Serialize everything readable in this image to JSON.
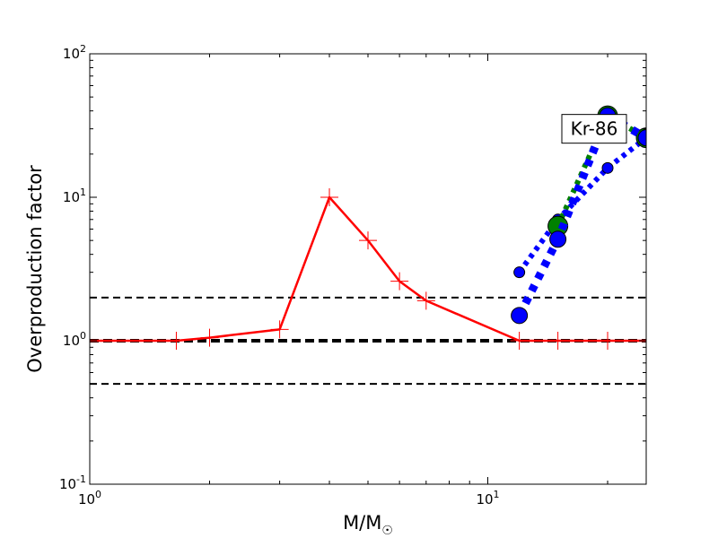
{
  "chart_data": {
    "type": "line",
    "title": "",
    "xlabel_main": "M/M",
    "xlabel_sub": "☉",
    "ylabel": "Overproduction factor",
    "x_scale": "log",
    "y_scale": "log",
    "xlim": [
      1,
      25
    ],
    "ylim": [
      0.1,
      100
    ],
    "grid": false,
    "x_ticks": [
      {
        "value": 1,
        "base": "10",
        "exp": "0"
      },
      {
        "value": 10,
        "base": "10",
        "exp": "1"
      }
    ],
    "y_ticks": [
      {
        "value": 0.1,
        "base": "10",
        "exp": "-1"
      },
      {
        "value": 1,
        "base": "10",
        "exp": "0"
      },
      {
        "value": 10,
        "base": "10",
        "exp": "1"
      },
      {
        "value": 100,
        "base": "10",
        "exp": "2"
      }
    ],
    "reference_lines": [
      {
        "y": 2,
        "style": "dashed",
        "color": "#000000",
        "width": 2
      },
      {
        "y": 1,
        "style": "dashed",
        "color": "#000000",
        "width": 4
      },
      {
        "y": 0.5,
        "style": "dashed",
        "color": "#000000",
        "width": 2
      }
    ],
    "series": [
      {
        "color": "#ff0000",
        "style": "solid",
        "width": 2.5,
        "marker": "plus",
        "points": [
          [
            1.0,
            1.0
          ],
          [
            1.65,
            1.0
          ],
          [
            2.0,
            1.05
          ],
          [
            3.0,
            1.2
          ],
          [
            4.0,
            10.0
          ],
          [
            5.0,
            5.0
          ],
          [
            6.0,
            2.6
          ],
          [
            7.0,
            1.9
          ],
          [
            12.0,
            1.0
          ],
          [
            15.0,
            1.0
          ],
          [
            20.0,
            1.0
          ],
          [
            25.0,
            1.0
          ]
        ]
      },
      {
        "color": "#0000ff",
        "style": "dotted",
        "width": 6,
        "marker": "circle",
        "marker_size": 6,
        "points": [
          [
            12.0,
            3.0
          ],
          [
            15.0,
            7.0
          ],
          [
            20.0,
            16.0
          ],
          [
            25.0,
            26.0
          ]
        ]
      },
      {
        "color": "#008000",
        "style": "dotted",
        "width": 6,
        "marker": "circle",
        "marker_size": 11,
        "points": [
          [
            15.0,
            6.3
          ],
          [
            20.0,
            37.0
          ],
          [
            25.0,
            26.0
          ]
        ]
      },
      {
        "color": "#0000ff",
        "style": "dotted",
        "width": 9,
        "marker": "circle",
        "marker_size": 9,
        "points": [
          [
            12.0,
            1.5
          ],
          [
            15.0,
            5.1
          ],
          [
            20.0,
            37.0
          ],
          [
            25.0,
            26.0
          ]
        ]
      }
    ],
    "annotation": {
      "text": "Kr-86",
      "x": 18.5,
      "y": 30.0
    }
  }
}
